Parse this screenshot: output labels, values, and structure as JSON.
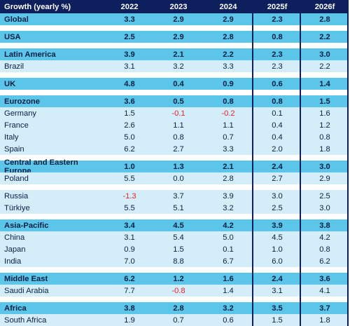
{
  "header": [
    "Growth (yearly %)",
    "2022",
    "2023",
    "2024",
    "2025f",
    "2026f"
  ],
  "rows": [
    {
      "label": "Global",
      "values": [
        "3.3",
        "2.9",
        "2.9",
        "2.3",
        "2.8"
      ],
      "type": "group"
    },
    {
      "label": "USA",
      "values": [
        "2.5",
        "2.9",
        "2.8",
        "0.8",
        "2.2"
      ],
      "type": "group"
    },
    {
      "label": "Latin America",
      "values": [
        "3.9",
        "2.1",
        "2.2",
        "2.3",
        "3.0"
      ],
      "type": "group"
    },
    {
      "label": "Brazil",
      "values": [
        "3.1",
        "3.2",
        "3.3",
        "2.3",
        "2.2"
      ],
      "type": "sub"
    },
    {
      "label": "UK",
      "values": [
        "4.8",
        "0.4",
        "0.9",
        "0.6",
        "1.4"
      ],
      "type": "group"
    },
    {
      "label": "Eurozone",
      "values": [
        "3.6",
        "0.5",
        "0.8",
        "0.8",
        "1.5"
      ],
      "type": "group"
    },
    {
      "label": "Germany",
      "values": [
        "1.5",
        "-0.1",
        "-0.2",
        "0.1",
        "1.6"
      ],
      "type": "sub"
    },
    {
      "label": "France",
      "values": [
        "2.6",
        "1.1",
        "1.1",
        "0.4",
        "1.2"
      ],
      "type": "sub"
    },
    {
      "label": "Italy",
      "values": [
        "5.0",
        "0.8",
        "0.7",
        "0.4",
        "0.8"
      ],
      "type": "sub"
    },
    {
      "label": "Spain",
      "values": [
        "6.2",
        "2.7",
        "3.3",
        "2.0",
        "1.8"
      ],
      "type": "sub"
    },
    {
      "label": "Central and Eastern Europe",
      "values": [
        "1.0",
        "1.3",
        "2.1",
        "2.4",
        "3.0"
      ],
      "type": "group"
    },
    {
      "label": "Poland",
      "values": [
        "5.5",
        "0.0",
        "2.8",
        "2.7",
        "2.9"
      ],
      "type": "sub"
    },
    {
      "label": "Russia",
      "values": [
        "-1.3",
        "3.7",
        "3.9",
        "3.0",
        "2.5"
      ],
      "type": "sub"
    },
    {
      "label": "Türkiye",
      "values": [
        "5.5",
        "5.1",
        "3.2",
        "2.5",
        "3.0"
      ],
      "type": "sub"
    },
    {
      "label": "Asia-Pacific",
      "values": [
        "3.4",
        "4.5",
        "4.2",
        "3.9",
        "3.8"
      ],
      "type": "group"
    },
    {
      "label": "China",
      "values": [
        "3.1",
        "5.4",
        "5.0",
        "4.5",
        "4.2"
      ],
      "type": "sub"
    },
    {
      "label": "Japan",
      "values": [
        "0.9",
        "1.5",
        "0.1",
        "1.0",
        "0.8"
      ],
      "type": "sub"
    },
    {
      "label": "India",
      "values": [
        "7.0",
        "8.8",
        "6.7",
        "6.0",
        "6.2"
      ],
      "type": "sub"
    },
    {
      "label": "Middle East",
      "values": [
        "6.2",
        "1.2",
        "1.6",
        "2.4",
        "3.6"
      ],
      "type": "group"
    },
    {
      "label": "Saudi Arabia",
      "values": [
        "7.7",
        "-0.8",
        "1.4",
        "3.1",
        "4.1"
      ],
      "type": "sub"
    },
    {
      "label": "Africa",
      "values": [
        "3.8",
        "2.8",
        "3.2",
        "3.5",
        "3.7"
      ],
      "type": "group"
    },
    {
      "label": "South Africa",
      "values": [
        "1.9",
        "0.7",
        "0.6",
        "1.5",
        "1.8"
      ],
      "type": "sub"
    }
  ],
  "colors": {
    "header": "#0d1f5c",
    "group": "#5bc6ea",
    "sub": "#d3eef9",
    "negative": "#e8202a"
  }
}
